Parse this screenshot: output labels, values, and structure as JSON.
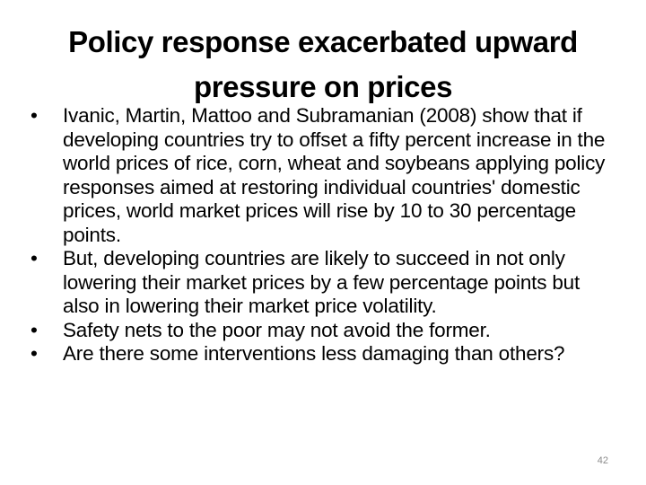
{
  "slide": {
    "title_line1": "Policy response exacerbated upward",
    "title_line2": "pressure on prices",
    "bullet_symbol": "•",
    "bullets": [
      "Ivanic, Martin, Mattoo and  Subramanian (2008) show that if developing countries try to offset a fifty percent increase in the world prices of rice, corn, wheat and soybeans applying policy responses aimed at restoring individual countries' domestic prices, world market prices will rise by 10 to 30 percentage points.",
      "But, developing countries are likely to succeed in not only lowering their market prices by a few percentage points but also in lowering their market price volatility.",
      "Safety nets to the poor may not avoid the former.",
      "Are there some interventions less damaging than others?"
    ],
    "page_number": "42"
  }
}
